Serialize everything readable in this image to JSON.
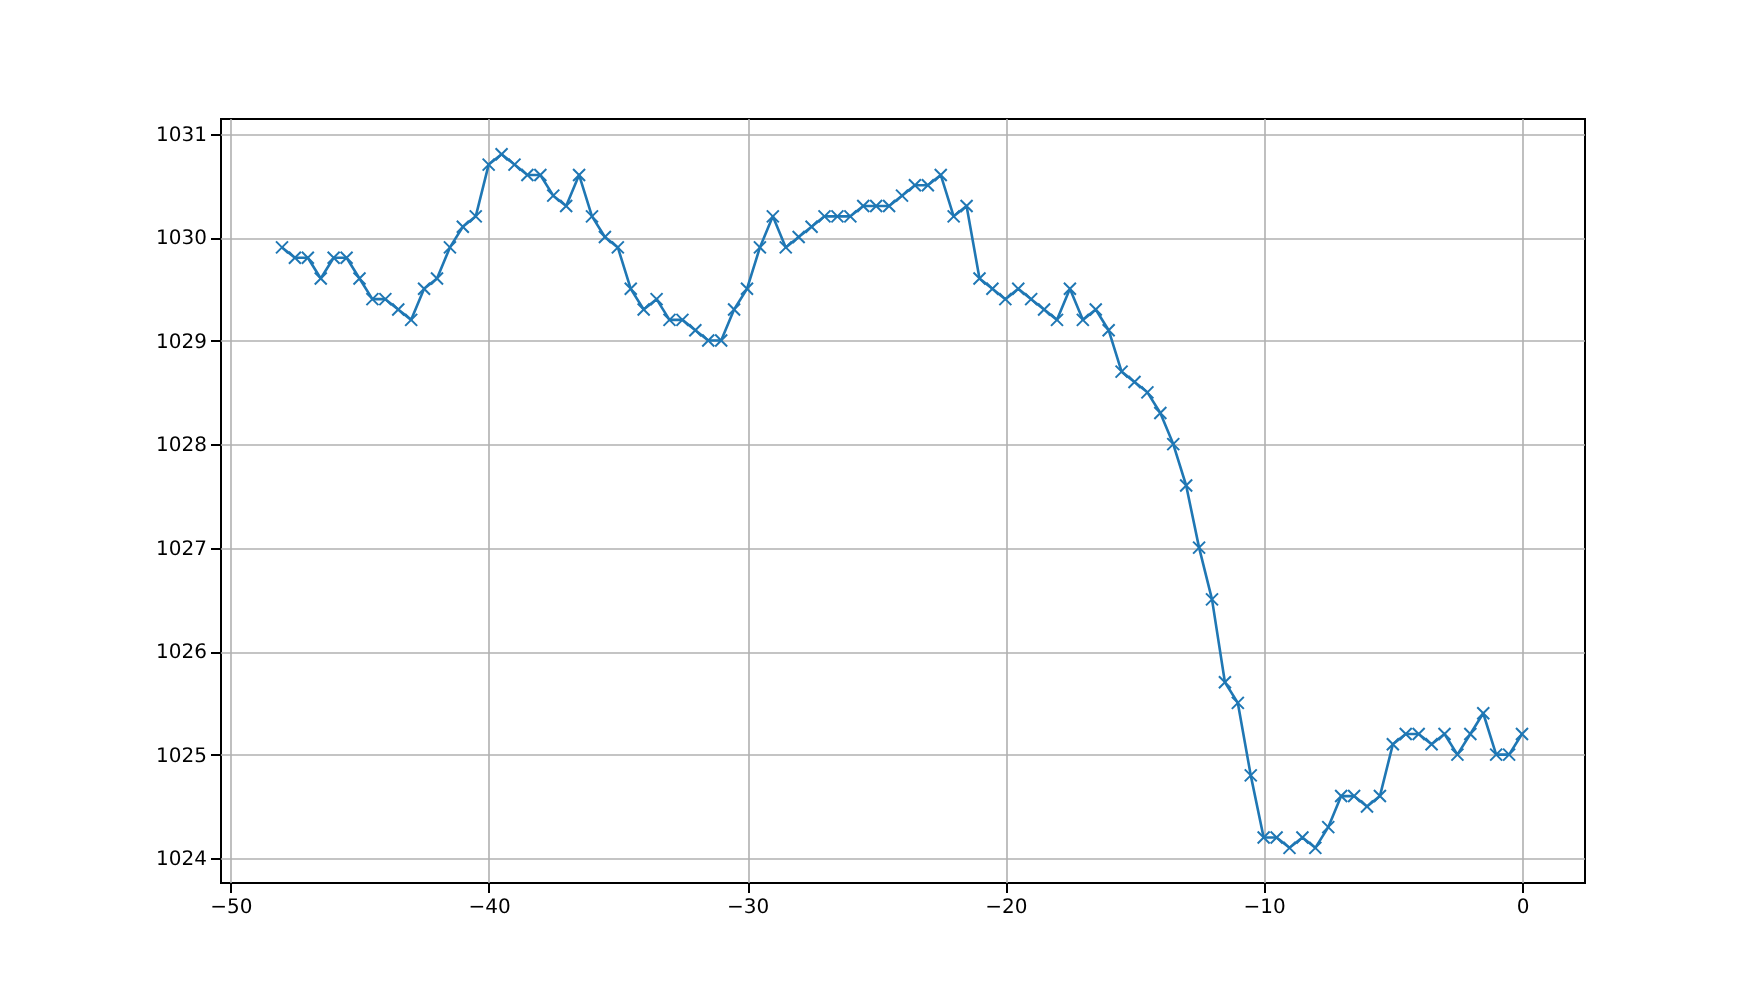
{
  "chart_data": {
    "type": "line",
    "x": [
      -48,
      -47.5,
      -47,
      -46.5,
      -46,
      -45.5,
      -45,
      -44.5,
      -44,
      -43.5,
      -43,
      -42.5,
      -42,
      -41.5,
      -41,
      -40.5,
      -40,
      -39.5,
      -39,
      -38.5,
      -38,
      -37.5,
      -37,
      -36.5,
      -36,
      -35.5,
      -35,
      -34.5,
      -34,
      -33.5,
      -33,
      -32.5,
      -32,
      -31.5,
      -31,
      -30.5,
      -30,
      -29.5,
      -29,
      -28.5,
      -28,
      -27.5,
      -27,
      -26.5,
      -26,
      -25.5,
      -25,
      -24.5,
      -24,
      -23.5,
      -23,
      -22.5,
      -22,
      -21.5,
      -21,
      -20.5,
      -20,
      -19.5,
      -19,
      -18.5,
      -18,
      -17.5,
      -17,
      -16.5,
      -16,
      -15.5,
      -15,
      -14.5,
      -14,
      -13.5,
      -13,
      -12.5,
      -12,
      -11.5,
      -11,
      -10.5,
      -10,
      -9.5,
      -9,
      -8.5,
      -8,
      -7.5,
      -7,
      -6.5,
      -6,
      -5.5,
      -5,
      -4.5,
      -4,
      -3.5,
      -3,
      -2.5,
      -2,
      -1.5,
      -1,
      -0.5,
      0
    ],
    "series": [
      {
        "color": "#1f77b4",
        "values": [
          1029.9,
          1029.8,
          1029.8,
          1029.6,
          1029.8,
          1029.8,
          1029.6,
          1029.4,
          1029.4,
          1029.3,
          1029.2,
          1029.5,
          1029.6,
          1029.9,
          1030.1,
          1030.2,
          1030.7,
          1030.8,
          1030.7,
          1030.6,
          1030.6,
          1030.4,
          1030.3,
          1030.6,
          1030.2,
          1030.0,
          1029.9,
          1029.5,
          1029.3,
          1029.4,
          1029.2,
          1029.2,
          1029.1,
          1029.0,
          1029.0,
          1029.3,
          1029.5,
          1029.9,
          1030.2,
          1029.9,
          1030.0,
          1030.1,
          1030.2,
          1030.2,
          1030.2,
          1030.3,
          1030.3,
          1030.3,
          1030.4,
          1030.5,
          1030.5,
          1030.6,
          1030.2,
          1030.3,
          1029.6,
          1029.5,
          1029.4,
          1029.5,
          1029.4,
          1029.3,
          1029.2,
          1029.5,
          1029.2,
          1029.3,
          1029.1,
          1028.7,
          1028.6,
          1028.5,
          1028.3,
          1028.0,
          1027.6,
          1027.0,
          1026.5,
          1025.7,
          1025.5,
          1024.8,
          1024.2,
          1024.2,
          1024.1,
          1024.2,
          1024.1,
          1024.3,
          1024.6,
          1024.6,
          1024.5,
          1024.6,
          1025.1,
          1025.2,
          1025.2,
          1025.1,
          1025.2,
          1025.0,
          1025.2,
          1025.4,
          1025.0,
          1025.0,
          1025.2
        ]
      }
    ],
    "xlim": [
      -50.4,
      2.4
    ],
    "xticks": [
      -50,
      -40,
      -30,
      -20,
      -10,
      0
    ],
    "ylim": [
      1023.77,
      1031.15
    ],
    "yticks": [
      1024,
      1025,
      1026,
      1027,
      1028,
      1029,
      1030,
      1031
    ],
    "grid": true,
    "marker": "cross",
    "line_style": "solid"
  }
}
